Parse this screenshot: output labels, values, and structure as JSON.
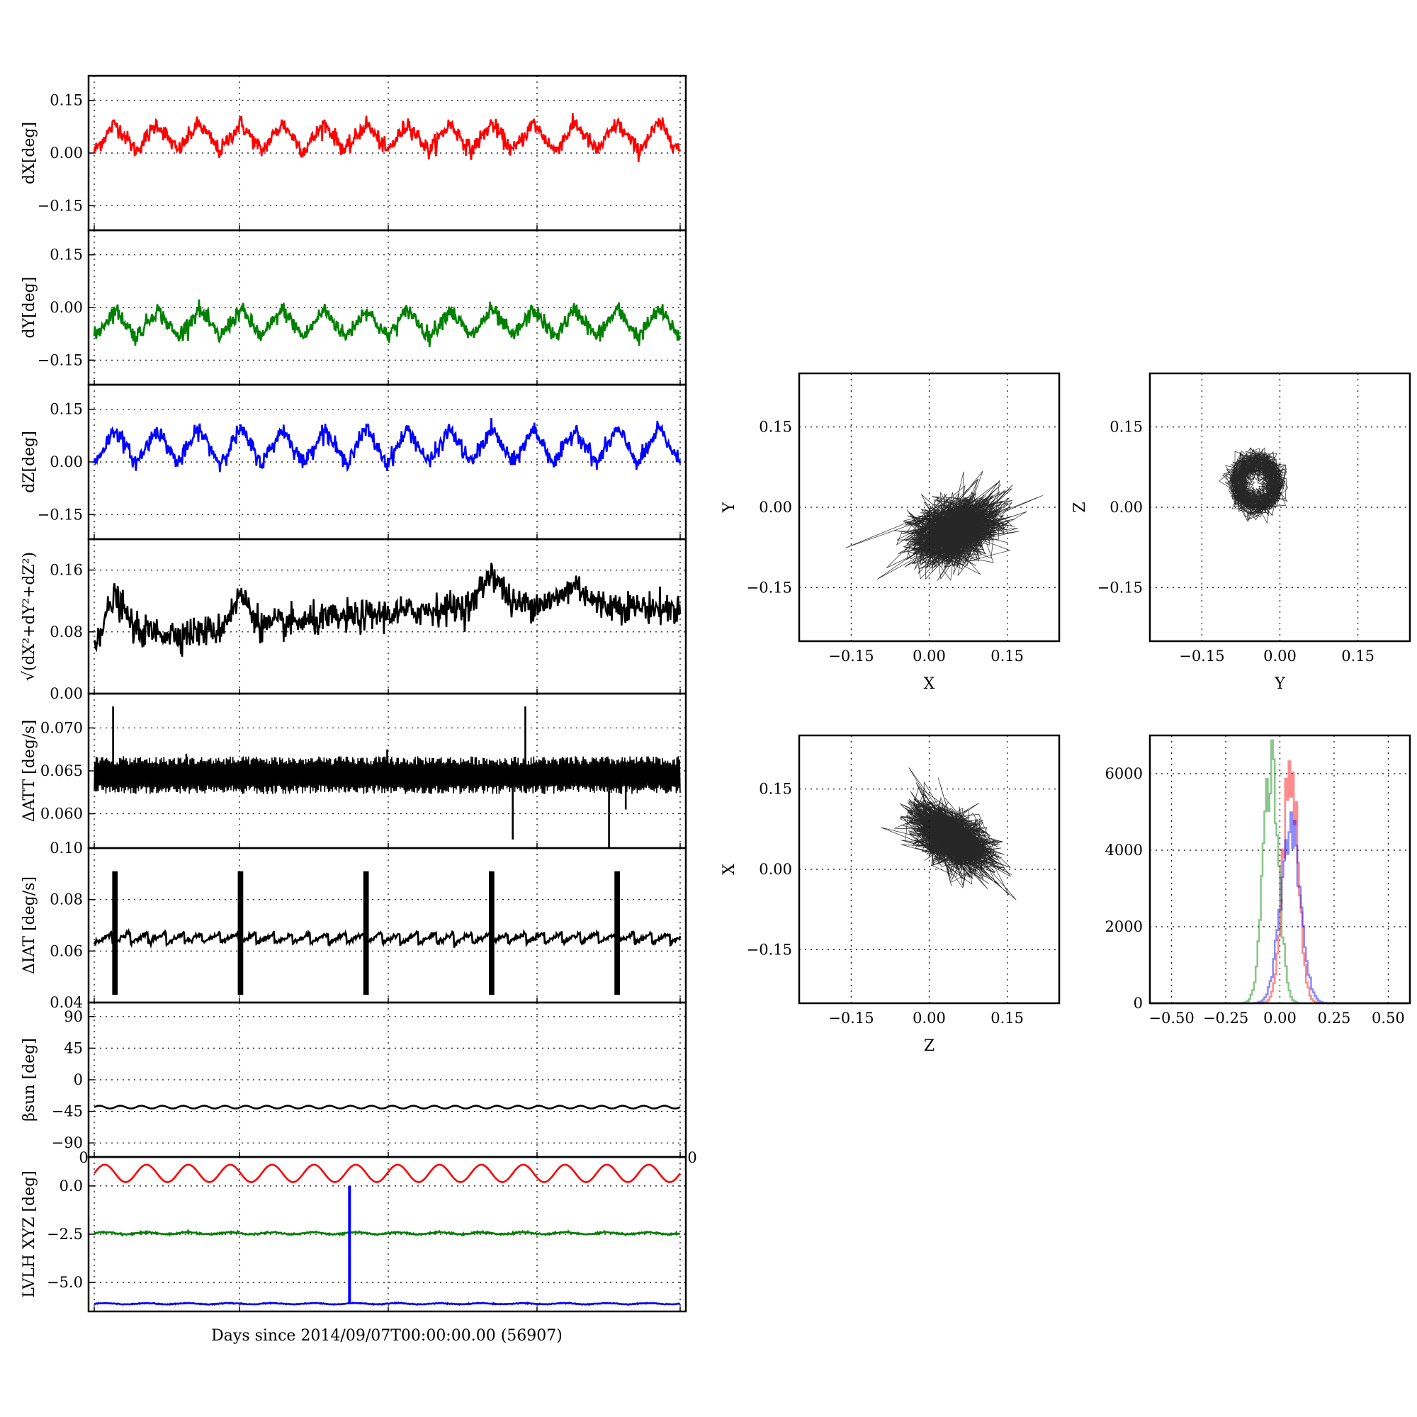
{
  "chart_data": [
    {
      "id": "ts-dx",
      "type": "line",
      "ylabel": "dX[deg]",
      "ylim": [
        -0.22,
        0.22
      ],
      "yticks": [
        "0.15",
        "0.00",
        "−0.15"
      ],
      "yticks_values": [
        0.15,
        0.0,
        -0.15
      ],
      "series": [
        {
          "color": "#ff0000",
          "mean": 0.045,
          "amplitude": 0.04,
          "period_days": 1,
          "noise": 0.012,
          "points": [
            [
              0,
              0.05
            ],
            [
              0.5,
              0.08
            ],
            [
              1,
              0.02
            ],
            [
              1.5,
              0.1
            ],
            [
              2,
              0.0
            ],
            [
              2.5,
              0.1
            ],
            [
              3,
              0.01
            ],
            [
              3.5,
              0.1
            ],
            [
              4,
              0.03
            ],
            [
              4.5,
              0.1
            ],
            [
              5,
              0.02
            ],
            [
              5.5,
              0.1
            ],
            [
              6,
              0.04
            ],
            [
              6.5,
              0.11
            ],
            [
              7,
              0.05
            ],
            [
              7.5,
              0.11
            ],
            [
              8,
              0.05
            ],
            [
              8.5,
              0.11
            ],
            [
              9,
              0.06
            ],
            [
              9.5,
              0.12
            ],
            [
              10,
              0.05
            ],
            [
              10.5,
              0.13
            ],
            [
              11,
              0.05
            ],
            [
              11.5,
              0.11
            ],
            [
              12,
              0.04
            ],
            [
              12.5,
              0.1
            ],
            [
              13,
              0.04
            ],
            [
              13.5,
              0.11
            ],
            [
              14,
              0.03
            ]
          ]
        }
      ]
    },
    {
      "id": "ts-dy",
      "type": "line",
      "ylabel": "dY[deg]",
      "ylim": [
        -0.22,
        0.22
      ],
      "yticks": [
        "0.15",
        "0.00",
        "−0.15"
      ],
      "yticks_values": [
        0.15,
        0.0,
        -0.15
      ],
      "series": [
        {
          "color": "#008000",
          "mean": -0.045,
          "amplitude": 0.04,
          "period_days": 1,
          "noise": 0.012,
          "points": [
            [
              0,
              0.01
            ],
            [
              0.5,
              -0.09
            ],
            [
              1,
              0.02
            ],
            [
              1.5,
              -0.09
            ],
            [
              2,
              0.02
            ],
            [
              2.5,
              -0.08
            ],
            [
              3,
              0.01
            ],
            [
              3.5,
              -0.07
            ],
            [
              4,
              0.0
            ],
            [
              4.5,
              -0.06
            ],
            [
              5,
              0.0
            ],
            [
              5.5,
              -0.07
            ],
            [
              6,
              0.01
            ],
            [
              6.5,
              -0.08
            ],
            [
              7,
              0.0
            ],
            [
              7.5,
              -0.08
            ],
            [
              8,
              0.0
            ],
            [
              8.5,
              -0.08
            ],
            [
              9,
              0.0
            ],
            [
              9.5,
              -0.09
            ],
            [
              10,
              0.02
            ],
            [
              10.5,
              -0.08
            ],
            [
              11,
              0.01
            ],
            [
              11.5,
              -0.1
            ],
            [
              12,
              0.0
            ],
            [
              12.5,
              -0.11
            ],
            [
              13,
              -0.02
            ],
            [
              13.5,
              -0.07
            ],
            [
              14,
              -0.07
            ]
          ]
        }
      ]
    },
    {
      "id": "ts-dz",
      "type": "line",
      "ylabel": "dZ[deg]",
      "ylim": [
        -0.22,
        0.22
      ],
      "yticks": [
        "0.15",
        "0.00",
        "−0.15"
      ],
      "yticks_values": [
        0.15,
        0.0,
        -0.15
      ],
      "series": [
        {
          "color": "#0000ff",
          "mean": 0.045,
          "amplitude": 0.05,
          "period_days": 1,
          "noise": 0.012,
          "points": [
            [
              0,
              0.02
            ],
            [
              0.5,
              0.09
            ],
            [
              1,
              -0.05
            ],
            [
              1.5,
              0.09
            ],
            [
              2,
              -0.05
            ],
            [
              2.5,
              0.09
            ],
            [
              3,
              -0.03
            ],
            [
              3.5,
              0.1
            ],
            [
              4,
              -0.02
            ],
            [
              4.5,
              0.1
            ],
            [
              5,
              -0.01
            ],
            [
              5.5,
              0.1
            ],
            [
              6,
              0.0
            ],
            [
              6.5,
              0.1
            ],
            [
              7,
              0.0
            ],
            [
              7.5,
              0.11
            ],
            [
              8,
              0.0
            ],
            [
              8.5,
              0.11
            ],
            [
              9,
              -0.01
            ],
            [
              9.5,
              0.14
            ],
            [
              10,
              -0.01
            ],
            [
              10.5,
              0.1
            ],
            [
              11,
              -0.03
            ],
            [
              11.5,
              0.1
            ],
            [
              12,
              -0.02
            ],
            [
              12.5,
              0.09
            ],
            [
              13,
              -0.03
            ],
            [
              13.5,
              0.09
            ],
            [
              14,
              0.08
            ]
          ]
        }
      ]
    },
    {
      "id": "ts-r",
      "type": "line",
      "ylabel": "√(dX²+dY²+dZ²)",
      "ylim": [
        0.0,
        0.2
      ],
      "yticks": [
        "0.16",
        "0.08",
        "0.00"
      ],
      "yticks_values": [
        0.16,
        0.08,
        0.0
      ],
      "series": [
        {
          "color": "#000000",
          "mean": 0.085,
          "amplitude": 0.01,
          "period_days": 1,
          "noise": 0.01,
          "points": [
            [
              0,
              0.065
            ],
            [
              0.5,
              0.13
            ],
            [
              1,
              0.08
            ],
            [
              2,
              0.075
            ],
            [
              3,
              0.08
            ],
            [
              3.5,
              0.13
            ],
            [
              4,
              0.085
            ],
            [
              5,
              0.09
            ],
            [
              6,
              0.095
            ],
            [
              7,
              0.1
            ],
            [
              8,
              0.105
            ],
            [
              9,
              0.11
            ],
            [
              9.5,
              0.16
            ],
            [
              10,
              0.11
            ],
            [
              11,
              0.115
            ],
            [
              11.5,
              0.14
            ],
            [
              12,
              0.11
            ],
            [
              13,
              0.105
            ],
            [
              14,
              0.1
            ]
          ]
        }
      ]
    },
    {
      "id": "ts-datt",
      "type": "line",
      "ylabel": "ΔATT [deg/s]",
      "ylim": [
        0.056,
        0.074
      ],
      "yticks": [
        "0.070",
        "0.065",
        "0.060"
      ],
      "yticks_values": [
        0.07,
        0.065,
        0.06
      ],
      "series": [
        {
          "color": "#000000",
          "mean": 0.0645,
          "amplitude": 0.002,
          "period_days": 0.1,
          "noise": 0.0006,
          "points": [
            [
              0,
              0.0645
            ],
            [
              0.45,
              0.0725
            ],
            [
              2.2,
              0.067
            ],
            [
              10,
              0.057
            ],
            [
              10.3,
              0.0725
            ],
            [
              12.3,
              0.056
            ],
            [
              14,
              0.0645
            ]
          ]
        }
      ]
    },
    {
      "id": "ts-diat",
      "type": "line",
      "ylabel": "ΔIAT [deg/s]",
      "ylim": [
        0.04,
        0.1
      ],
      "yticks": [
        "0.10",
        "0.08",
        "0.06",
        "0.04"
      ],
      "yticks_values": [
        0.1,
        0.08,
        0.06,
        0.04
      ],
      "series": [
        {
          "color": "#000000",
          "mean": 0.065,
          "amplitude": 0.002,
          "period_days": 0.43,
          "noise": 0.0005,
          "points": [
            [
              0,
              0.065
            ],
            [
              0.45,
              0.091
            ],
            [
              0.45,
              0.042
            ],
            [
              3.45,
              0.09
            ],
            [
              3.45,
              0.041
            ],
            [
              6.45,
              0.092
            ],
            [
              6.45,
              0.043
            ],
            [
              9.45,
              0.091
            ],
            [
              9.45,
              0.043
            ],
            [
              12.45,
              0.092
            ],
            [
              12.45,
              0.042
            ],
            [
              14,
              0.066
            ]
          ]
        }
      ]
    },
    {
      "id": "ts-beta",
      "type": "line",
      "ylabel": "βsun [deg]",
      "ylim": [
        -110,
        110
      ],
      "yticks": [
        "90",
        "45",
        "0",
        "−45",
        "−90"
      ],
      "yticks_values": [
        90,
        45,
        0,
        -45,
        -90
      ],
      "series": [
        {
          "color": "#000000",
          "mean": -39,
          "amplitude": 2,
          "period_days": 0.5,
          "noise": 0,
          "points": [
            [
              0,
              -39
            ],
            [
              14,
              -39
            ]
          ]
        }
      ]
    },
    {
      "id": "ts-lvlh",
      "type": "line",
      "ylabel": "LVLH XYZ [deg]",
      "ylim": [
        -6.5,
        1.5
      ],
      "yticks": [
        "0.0",
        "−2.5",
        "−5.0"
      ],
      "yticks_values": [
        0.0,
        -2.5,
        -5.0
      ],
      "overlay_ticks": [
        "0",
        "0"
      ],
      "xlabel": "Days since 2014/09/07T00:00:00.00 (56907)",
      "series": [
        {
          "color": "#ff0000",
          "mean": 0.7,
          "amplitude": 0.45,
          "period_days": 1,
          "noise": 0,
          "points": [
            [
              0,
              1.15
            ],
            [
              14,
              0.25
            ]
          ]
        },
        {
          "color": "#008000",
          "mean": -2.45,
          "amplitude": 0.05,
          "period_days": 1,
          "noise": 0.02,
          "points": [
            [
              0,
              -2.45
            ],
            [
              14,
              -2.45
            ]
          ]
        },
        {
          "color": "#0000ff",
          "mean": -6.1,
          "amplitude": 0.03,
          "period_days": 1,
          "noise": 0.01,
          "points": [
            [
              0,
              -6.1
            ],
            [
              6.1,
              -6.1
            ],
            [
              6.1,
              0.0
            ],
            [
              6.1,
              -6.1
            ],
            [
              14,
              -6.1
            ]
          ]
        }
      ]
    },
    {
      "id": "sc-xy",
      "type": "scatter",
      "xlabel": "X",
      "ylabel": "Y",
      "xlim": [
        -0.25,
        0.25
      ],
      "ylim": [
        -0.25,
        0.25
      ],
      "xticks": [
        "−0.15",
        "0.00",
        "0.15"
      ],
      "yticks": [
        "0.15",
        "0.00",
        "−0.15"
      ],
      "cloud": {
        "center": [
          0.05,
          -0.045
        ],
        "spread": [
          0.055,
          0.04
        ],
        "corr": 0.35,
        "ring": false
      }
    },
    {
      "id": "sc-yz",
      "type": "scatter",
      "xlabel": "Y",
      "ylabel": "Z",
      "xlim": [
        -0.25,
        0.25
      ],
      "ylim": [
        -0.25,
        0.25
      ],
      "xticks": [
        "−0.15",
        "0.00",
        "0.15"
      ],
      "yticks": [
        "0.15",
        "0.00",
        "−0.15"
      ],
      "cloud": {
        "center": [
          -0.045,
          0.045
        ],
        "spread": [
          0.045,
          0.05
        ],
        "corr": 0.0,
        "ring": true
      }
    },
    {
      "id": "sc-zx",
      "type": "scatter",
      "xlabel": "Z",
      "ylabel": "X",
      "xlim": [
        -0.25,
        0.25
      ],
      "ylim": [
        -0.25,
        0.25
      ],
      "xticks": [
        "−0.15",
        "0.00",
        "0.15"
      ],
      "yticks": [
        "0.15",
        "0.00",
        "−0.15"
      ],
      "cloud": {
        "center": [
          0.04,
          0.06
        ],
        "spread": [
          0.05,
          0.04
        ],
        "corr": -0.55,
        "ring": false
      }
    },
    {
      "id": "hist-xyz",
      "type": "histogram",
      "xlim": [
        -0.6,
        0.6
      ],
      "ylim": [
        0,
        7000
      ],
      "xticks": [
        "−0.50",
        "−0.25",
        "0.00",
        "0.25",
        "0.50"
      ],
      "xticks_values": [
        -0.5,
        -0.25,
        0.0,
        0.25,
        0.5
      ],
      "yticks": [
        "6000",
        "4000",
        "2000",
        "0"
      ],
      "yticks_values": [
        6000,
        4000,
        2000,
        0
      ],
      "series": [
        {
          "color": "#ff0000",
          "opacity": 0.45,
          "mean": 0.045,
          "sigma": 0.035,
          "peak": 6200
        },
        {
          "color": "#008000",
          "opacity": 0.45,
          "mean": -0.045,
          "sigma": 0.035,
          "peak": 6200
        },
        {
          "color": "#0000ff",
          "opacity": 0.45,
          "mean": 0.045,
          "sigma": 0.045,
          "peak": 4700
        }
      ]
    }
  ]
}
